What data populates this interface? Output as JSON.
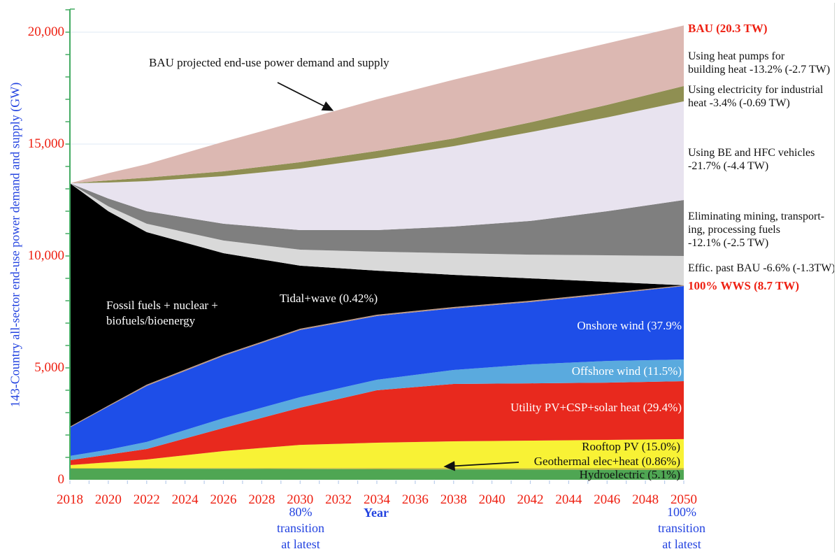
{
  "chart_data": {
    "type": "area",
    "stacked": true,
    "title": "BAU projected end-use power demand and supply vs 100% WWS",
    "xlabel": "Year",
    "ylabel": "143-Country all-sector end-use power demand and supply (GW)",
    "unit": "GW",
    "xlim": [
      2018,
      2050
    ],
    "ylim": [
      0,
      21000
    ],
    "x": [
      2018,
      2020,
      2022,
      2026,
      2030,
      2034,
      2038,
      2042,
      2046,
      2050
    ],
    "x_tick_labels": [
      "2018",
      "2020",
      "2022",
      "2024",
      "2026",
      "2028",
      "2030",
      "2032",
      "2034",
      "2036",
      "2038",
      "2040",
      "2042",
      "2044",
      "2046",
      "2048",
      "2050"
    ],
    "yticks": [
      0,
      5000,
      10000,
      15000,
      20000
    ],
    "y_tick_labels": [
      "0",
      "5,000",
      "10,000",
      "15,000",
      "20,000"
    ],
    "grid": true,
    "legend_position": "in-plot labels",
    "key_values": {
      "start_2018_gw": 13250,
      "bau_2050_tw": 20.3,
      "wws_2050_tw": 8.7,
      "transition_80pct_year": 2030,
      "transition_100pct_year": 2050
    },
    "bands": [
      {
        "name": "Hydroelectric",
        "share_2050": "5.1%",
        "color": "#4fa653",
        "top": [
          500,
          500,
          500,
          490,
          480,
          470,
          460,
          450,
          445,
          440
        ]
      },
      {
        "name": "Geothermal elec+heat",
        "share_2050": "0.86%",
        "color": "#b8b33e",
        "top": [
          515,
          518,
          522,
          520,
          520,
          520,
          518,
          514,
          515,
          515
        ]
      },
      {
        "name": "Rooftop PV",
        "share_2050": "15.0%",
        "color": "#f8f235",
        "top": [
          656,
          781,
          906,
          1280,
          1560,
          1655,
          1720,
          1750,
          1780,
          1815
        ]
      },
      {
        "name": "Utility PV+CSP+solar heat",
        "share_2050": "29.4%",
        "color": "#e8291e",
        "top": [
          875,
          1125,
          1375,
          2313,
          3219,
          4000,
          4280,
          4310,
          4340,
          4405
        ]
      },
      {
        "name": "Offshore wind",
        "share_2050": "11.5%",
        "color": "#5aaade",
        "top": [
          1065,
          1345,
          1690,
          2750,
          3690,
          4470,
          4905,
          5155,
          5310,
          5375
        ]
      },
      {
        "name": "Onshore wind",
        "share_2050": "37.9%",
        "color": "#1e4ee8",
        "top": [
          2335,
          3275,
          4190,
          5535,
          6690,
          7315,
          7660,
          7940,
          8285,
          8655
        ]
      },
      {
        "name": "Tidal+wave",
        "share_2050": "0.42%",
        "color": "#bd9884",
        "top": [
          2375,
          3315,
          4250,
          5595,
          6750,
          7375,
          7720,
          8000,
          8345,
          8690
        ]
      },
      {
        "name": "Fossil fuels + nuclear + biofuels/bioenergy",
        "color": "#000000",
        "top": [
          13250,
          12000,
          11065,
          10125,
          9565,
          9345,
          9155,
          9000,
          8845,
          8690
        ]
      },
      {
        "name": "Efficiency past BAU",
        "reduction": "-6.6% (-1.3TW)",
        "color": "#d9d9d9",
        "top": [
          13250,
          12220,
          11440,
          10690,
          10280,
          10190,
          10125,
          10060,
          10030,
          10000
        ]
      },
      {
        "name": "Eliminating mining, transporting, processing fuels",
        "reduction": "-12.1% (-2.5 TW)",
        "color": "#7f7f7f",
        "top": [
          13250,
          12565,
          12000,
          11440,
          11155,
          11155,
          11315,
          11565,
          12000,
          12500
        ]
      },
      {
        "name": "Using BE and HFC vehicles",
        "reduction": "-21.7% (-4.4 TW)",
        "color": "#e8e3ef",
        "top": [
          13250,
          13280,
          13345,
          13565,
          13905,
          14375,
          14905,
          15530,
          16190,
          16910
        ]
      },
      {
        "name": "Using electricity for industrial heat",
        "reduction": "-3.4% (-0.69 TW)",
        "color": "#8f8f52",
        "top": [
          13250,
          13375,
          13500,
          13780,
          14190,
          14690,
          15250,
          15970,
          16750,
          17595
        ]
      },
      {
        "name": "Using heat pumps for building heat",
        "reduction": "-13.2% (-2.7 TW)",
        "color": "#dcb8b2",
        "top": [
          13250,
          13700,
          14100,
          15100,
          16050,
          17000,
          17875,
          18700,
          19500,
          20300
        ]
      }
    ]
  },
  "labels": {
    "y_axis_title": "143-Country all-sector end-use power demand and supply (GW)",
    "x_axis_title": "Year",
    "bau_curve": "BAU projected end-use power demand and supply",
    "fossil_line1": "Fossil fuels + nuclear +",
    "fossil_line2": "biofuels/bioenergy",
    "tidal": "Tidal+wave (0.42%)",
    "onshore": "Onshore wind (37.9%",
    "offshore": "Offshore wind (11.5%)",
    "utility": "Utility PV+CSP+solar heat (29.4%)",
    "rooftop": "Rooftop PV (15.0%)",
    "geothermal": "Geothermal elec+heat (0.86%)",
    "hydro": "Hydroelectric (5.1%)",
    "bau_value": "BAU (20.3 TW)",
    "wws_value": "100% WWS (8.7 TW)",
    "heat_pumps_l1": "Using heat pumps for",
    "heat_pumps_l2": "building heat -13.2% (-2.7 TW)",
    "industrial_l1": "Using electricity for industrial",
    "industrial_l2": "heat -3.4% (-0.69 TW)",
    "vehicles_l1": "Using BE and HFC vehicles",
    "vehicles_l2": "-21.7% (-4.4 TW)",
    "mining_l1": "Eliminating mining, transport-",
    "mining_l2": "ing, processing fuels",
    "mining_l3": "-12.1% (-2.5 TW)",
    "effic": "Effic. past BAU -6.6% (-1.3TW)",
    "t80_l1": "80%",
    "t80_l2": "transition",
    "t80_l3": "at latest",
    "t100_l1": "100%",
    "t100_l2": "transition",
    "t100_l3": "at latest"
  },
  "style": {
    "axis_color": "#44ab63",
    "grid_color": "#dfe9f4",
    "x_tick_color": "#b9cdeb",
    "red_text": "#ee2012",
    "blue_text": "#2343e0"
  }
}
